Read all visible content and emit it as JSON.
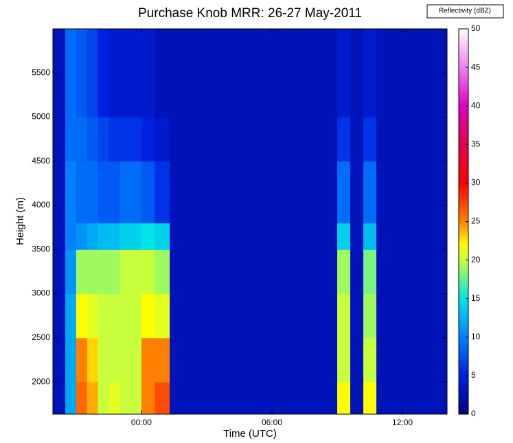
{
  "chart_data": {
    "type": "heatmap",
    "title": "Purchase Knob MRR: 26-27 May-2011",
    "xlabel": "Time (UTC)",
    "ylabel": "Height (m)",
    "colorbar_label": "Reflectivity (dBZ)",
    "x_edges": [
      -4.07,
      -3.5,
      -3,
      -2.5,
      -2,
      -1.5,
      -1,
      -0.5,
      0,
      0.6,
      1.3,
      9.0,
      9.6,
      10.2,
      10.8,
      14.05
    ],
    "y_edges": [
      1635,
      2000,
      2500,
      3000,
      3500,
      3800,
      4500,
      5000,
      6000
    ],
    "values": [
      [
        3,
        12,
        26,
        24,
        20,
        21,
        20,
        20,
        25,
        27,
        3,
        22,
        3,
        22,
        3
      ],
      [
        3,
        12,
        25,
        23,
        20,
        20,
        20,
        20,
        25,
        25,
        3,
        20,
        3,
        20,
        3
      ],
      [
        3,
        12,
        22,
        21,
        20,
        20,
        20,
        20,
        22,
        21,
        3,
        20,
        3,
        19,
        3
      ],
      [
        3,
        11,
        19,
        19,
        19,
        19,
        20,
        20,
        20,
        19,
        3,
        19,
        3,
        18,
        3
      ],
      [
        3,
        10,
        11,
        12,
        13,
        13,
        14,
        14,
        15,
        14,
        3,
        14,
        3,
        13,
        3
      ],
      [
        3,
        10,
        9,
        9,
        8,
        8,
        9,
        9,
        8,
        6,
        3,
        9,
        3,
        9,
        3
      ],
      [
        3,
        9,
        9,
        8,
        7,
        6,
        6,
        6,
        5,
        4,
        3,
        6,
        3,
        6,
        3
      ],
      [
        3,
        9,
        8,
        7,
        5,
        4,
        4,
        4,
        4,
        3,
        3,
        4,
        3,
        4,
        3
      ]
    ],
    "xlim": [
      -4.07,
      14.05
    ],
    "xticks": [
      {
        "value": 0,
        "label": "00:00"
      },
      {
        "value": 6,
        "label": "06:00"
      },
      {
        "value": 12,
        "label": "12:00"
      }
    ],
    "ylim": [
      1635,
      6000
    ],
    "yticks": [
      2000,
      2500,
      3000,
      3500,
      4000,
      4500,
      5000,
      5500
    ],
    "clim": [
      0,
      50
    ],
    "cticks": [
      0,
      5,
      10,
      15,
      20,
      25,
      30,
      35,
      40,
      45,
      50
    ],
    "colormap": [
      {
        "value": 0,
        "color": "#00007f"
      },
      {
        "value": 5,
        "color": "#0020e0"
      },
      {
        "value": 10,
        "color": "#0080ff"
      },
      {
        "value": 15,
        "color": "#00e6e6"
      },
      {
        "value": 20,
        "color": "#c8ff3c"
      },
      {
        "value": 22,
        "color": "#ffff00"
      },
      {
        "value": 25,
        "color": "#ff8000"
      },
      {
        "value": 30,
        "color": "#ff0000"
      },
      {
        "value": 35,
        "color": "#e0004a"
      },
      {
        "value": 40,
        "color": "#e000c0"
      },
      {
        "value": 45,
        "color": "#f080f0"
      },
      {
        "value": 50,
        "color": "#ffffff"
      }
    ]
  }
}
